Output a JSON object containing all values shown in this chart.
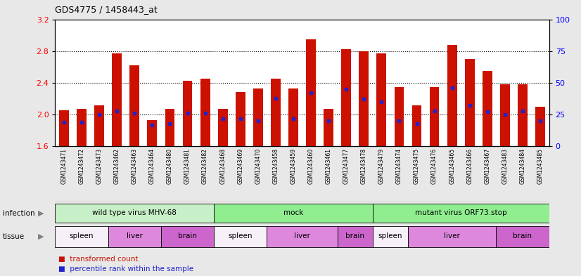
{
  "title": "GDS4775 / 1458443_at",
  "samples": [
    "GSM1243471",
    "GSM1243472",
    "GSM1243473",
    "GSM1243462",
    "GSM1243463",
    "GSM1243464",
    "GSM1243480",
    "GSM1243481",
    "GSM1243482",
    "GSM1243468",
    "GSM1243469",
    "GSM1243470",
    "GSM1243458",
    "GSM1243459",
    "GSM1243460",
    "GSM1243461",
    "GSM1243477",
    "GSM1243478",
    "GSM1243479",
    "GSM1243474",
    "GSM1243475",
    "GSM1243476",
    "GSM1243465",
    "GSM1243466",
    "GSM1243467",
    "GSM1243483",
    "GSM1243484",
    "GSM1243485"
  ],
  "transformed_count": [
    2.05,
    2.07,
    2.12,
    2.77,
    2.62,
    1.93,
    2.07,
    2.43,
    2.45,
    2.07,
    2.28,
    2.33,
    2.45,
    2.33,
    2.95,
    2.07,
    2.82,
    2.8,
    2.77,
    2.35,
    2.12,
    2.35,
    2.88,
    2.7,
    2.55,
    2.38,
    2.38,
    2.1
  ],
  "percentile_rank": [
    19,
    19,
    25,
    28,
    26,
    17,
    18,
    26,
    26,
    22,
    22,
    20,
    38,
    22,
    42,
    20,
    45,
    37,
    35,
    20,
    18,
    28,
    46,
    32,
    27,
    25,
    28,
    20
  ],
  "baseline": 1.6,
  "ylim_left": [
    1.6,
    3.2
  ],
  "ylim_right": [
    0,
    100
  ],
  "yticks_left": [
    1.6,
    2.0,
    2.4,
    2.8,
    3.2
  ],
  "yticks_right": [
    0,
    25,
    50,
    75,
    100
  ],
  "infection_groups": [
    {
      "label": "wild type virus MHV-68",
      "start": 0,
      "end": 9,
      "color": "#b8f0b8"
    },
    {
      "label": "mock",
      "start": 9,
      "end": 18,
      "color": "#90ee90"
    },
    {
      "label": "mutant virus ORF73.stop",
      "start": 18,
      "end": 28,
      "color": "#70d870"
    }
  ],
  "tissue_groups": [
    {
      "label": "spleen",
      "start": 0,
      "end": 3,
      "color": "#f0d0f0"
    },
    {
      "label": "liver",
      "start": 3,
      "end": 6,
      "color": "#da70d6"
    },
    {
      "label": "brain",
      "start": 6,
      "end": 9,
      "color": "#da70d6"
    },
    {
      "label": "spleen",
      "start": 9,
      "end": 12,
      "color": "#f0d0f0"
    },
    {
      "label": "liver",
      "start": 12,
      "end": 16,
      "color": "#da70d6"
    },
    {
      "label": "brain",
      "start": 16,
      "end": 18,
      "color": "#da70d6"
    },
    {
      "label": "spleen",
      "start": 18,
      "end": 20,
      "color": "#f0d0f0"
    },
    {
      "label": "liver",
      "start": 20,
      "end": 25,
      "color": "#da70d6"
    },
    {
      "label": "brain",
      "start": 25,
      "end": 28,
      "color": "#da70d6"
    }
  ],
  "bar_color": "#cc1100",
  "dot_color": "#2222cc",
  "background_color": "#e8e8e8",
  "plot_bg_color": "#ffffff",
  "xtick_bg_color": "#d0d0d0"
}
